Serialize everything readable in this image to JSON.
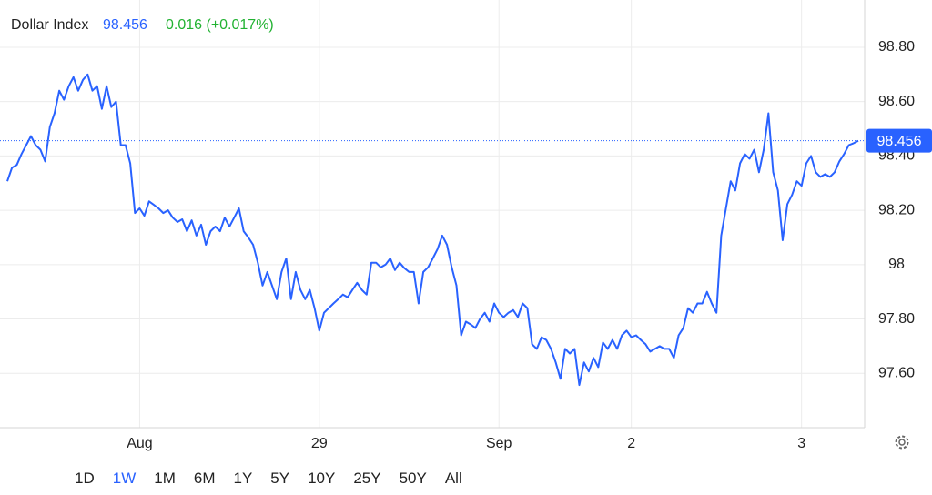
{
  "chart_data": {
    "type": "line",
    "title": "Dollar Index",
    "price": 98.456,
    "change": "0.016 (+0.017%)",
    "series": [
      {
        "name": "Dollar Index",
        "color": "#2962ff",
        "values": [
          98.307,
          98.357,
          98.367,
          98.407,
          98.44,
          98.473,
          98.44,
          98.423,
          98.38,
          98.507,
          98.557,
          98.64,
          98.607,
          98.657,
          98.69,
          98.64,
          98.68,
          98.7,
          98.64,
          98.657,
          98.573,
          98.657,
          98.58,
          98.6,
          98.44,
          98.44,
          98.373,
          98.19,
          98.207,
          98.18,
          98.233,
          98.22,
          98.207,
          98.19,
          98.2,
          98.173,
          98.157,
          98.167,
          98.123,
          98.163,
          98.107,
          98.147,
          98.073,
          98.123,
          98.14,
          98.123,
          98.173,
          98.14,
          98.173,
          98.207,
          98.123,
          98.1,
          98.073,
          98.007,
          97.923,
          97.973,
          97.923,
          97.873,
          97.973,
          98.023,
          97.873,
          97.973,
          97.907,
          97.873,
          97.907,
          97.84,
          97.757,
          97.823,
          97.84,
          97.857,
          97.873,
          97.89,
          97.88,
          97.907,
          97.933,
          97.907,
          97.89,
          98.007,
          98.007,
          97.99,
          98.0,
          98.023,
          97.98,
          98.007,
          97.987,
          97.973,
          97.973,
          97.857,
          97.973,
          97.99,
          98.023,
          98.057,
          98.107,
          98.073,
          97.99,
          97.923,
          97.74,
          97.79,
          97.78,
          97.767,
          97.8,
          97.823,
          97.79,
          97.857,
          97.823,
          97.807,
          97.823,
          97.833,
          97.807,
          97.857,
          97.84,
          97.707,
          97.69,
          97.733,
          97.723,
          97.69,
          97.64,
          97.58,
          97.69,
          97.673,
          97.69,
          97.557,
          97.64,
          97.607,
          97.657,
          97.623,
          97.713,
          97.69,
          97.723,
          97.69,
          97.74,
          97.757,
          97.733,
          97.74,
          97.723,
          97.707,
          97.68,
          97.69,
          97.7,
          97.69,
          97.69,
          97.657,
          97.74,
          97.767,
          97.84,
          97.823,
          97.857,
          97.857,
          97.9,
          97.857,
          97.823,
          98.107,
          98.207,
          98.307,
          98.273,
          98.373,
          98.407,
          98.39,
          98.423,
          98.34,
          98.423,
          98.557,
          98.34,
          98.273,
          98.09,
          98.223,
          98.257,
          98.307,
          98.29,
          98.373,
          98.4,
          98.34,
          98.323,
          98.333,
          98.323,
          98.34,
          98.38,
          98.407,
          98.44,
          98.447,
          98.456
        ]
      }
    ],
    "xlim": [
      0,
      180
    ],
    "xticks": [
      {
        "value": 28,
        "label": "Aug"
      },
      {
        "value": 66,
        "label": "29"
      },
      {
        "value": 104,
        "label": "Sep"
      },
      {
        "value": 132,
        "label": "2"
      },
      {
        "value": 168,
        "label": "3"
      }
    ],
    "ylim": [
      97.4,
      98.974
    ],
    "yticks": [
      {
        "value": 97.6,
        "label": "97.60"
      },
      {
        "value": 97.8,
        "label": "97.80"
      },
      98,
      {
        "value": 98.2,
        "label": "98.20"
      },
      {
        "value": 98.4,
        "label": "98.40"
      },
      {
        "value": 98.6,
        "label": "98.60"
      },
      {
        "value": 98.8,
        "label": "98.80"
      }
    ],
    "grid": true,
    "ranges": [
      "1D",
      "1W",
      "1M",
      "6M",
      "1Y",
      "5Y",
      "10Y",
      "25Y",
      "50Y",
      "All"
    ],
    "active_range": "1W"
  }
}
